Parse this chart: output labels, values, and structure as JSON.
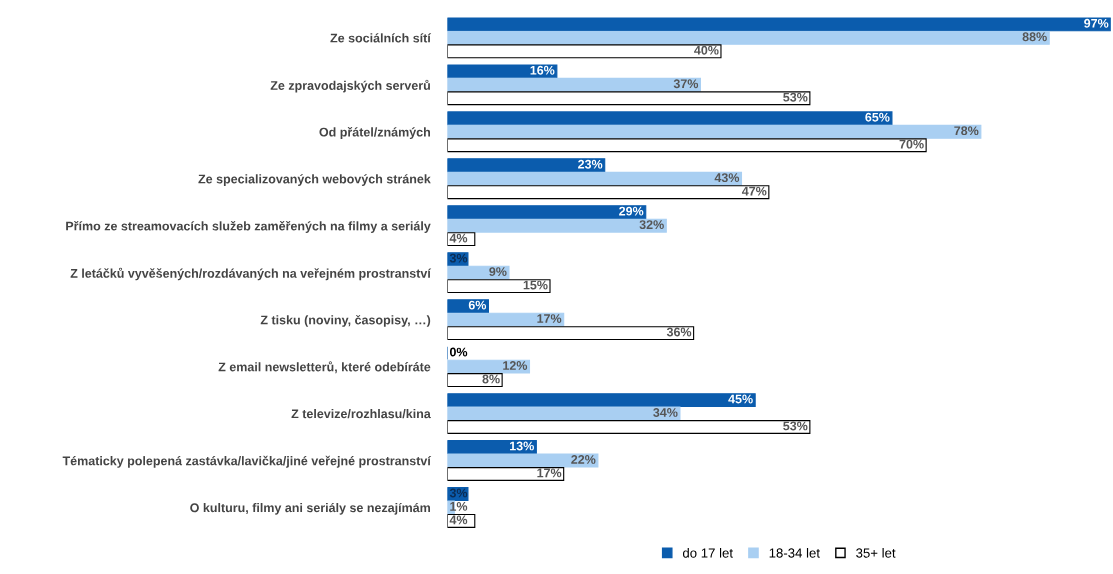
{
  "chart_data": {
    "type": "bar",
    "orientation": "horizontal",
    "legend": "bottom",
    "grid": false,
    "categories": [
      "Ze sociálních sítí",
      "Ze zpravodajských serverů",
      "Od přátel/známých",
      "Ze specializovaných webových stránek",
      "Přímo ze streamovacích služeb zaměřených na filmy a seriály",
      "Z letáčků vyvěšených/rozdávaných na veřejném prostranství",
      "Z tisku (noviny, časopisy, …)",
      "Z email newsletterů, které odebíráte",
      "Z televize/rozhlasu/kina",
      "Tématicky polepená zastávka/lavička/jiné veřejné prostranství",
      "O kulturu, filmy ani seriály se nezajímám"
    ],
    "series": [
      {
        "name": "do 17 let",
        "color": "#0b5cad",
        "values": [
          97,
          16,
          65,
          23,
          29,
          3,
          6,
          0,
          45,
          13,
          3
        ],
        "value_labels": [
          "97%",
          "16%",
          "65%",
          "23%",
          "29%",
          "3%",
          "6%",
          "0%",
          "45%",
          "13%",
          "3%"
        ]
      },
      {
        "name": "18-34 let",
        "color": "#a9cff2",
        "values": [
          88,
          37,
          78,
          43,
          32,
          9,
          17,
          12,
          34,
          22,
          1
        ],
        "value_labels": [
          "88%",
          "37%",
          "78%",
          "43%",
          "32%",
          "9%",
          "17%",
          "12%",
          "34%",
          "22%",
          "1%"
        ]
      },
      {
        "name": "35+ let",
        "color": "#ffffff",
        "values": [
          40,
          53,
          70,
          47,
          4,
          15,
          36,
          8,
          53,
          17,
          4
        ],
        "value_labels": [
          "40%",
          "53%",
          "70%",
          "47%",
          "4%",
          "15%",
          "36%",
          "8%",
          "53%",
          "17%",
          "4%"
        ]
      }
    ]
  }
}
